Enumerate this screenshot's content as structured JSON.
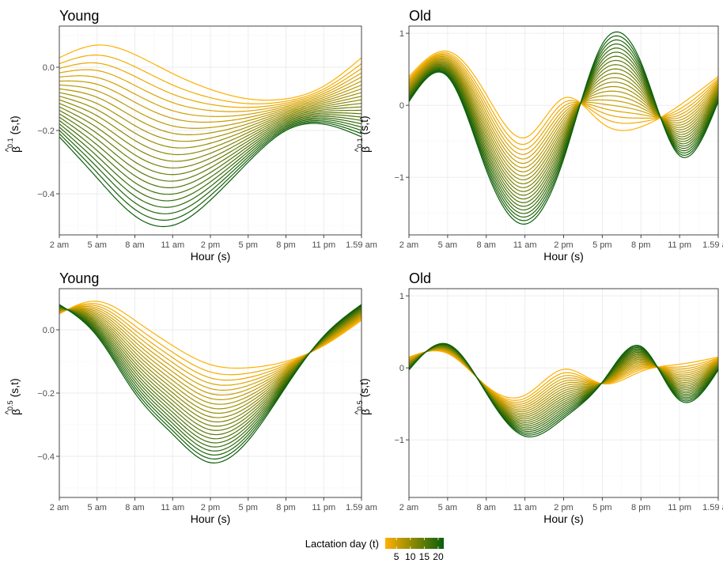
{
  "x_tick_labels": [
    "2 am",
    "5 am",
    "8 am",
    "11 am",
    "2 pm",
    "5 pm",
    "8 pm",
    "11 pm",
    "1.59 am"
  ],
  "x_axis_label": "Hour (s)",
  "legend": {
    "title": "Lactation day (t)",
    "ticks": [
      5,
      10,
      15,
      20
    ],
    "colors": {
      "low": "#ffb000",
      "high": "#0a5e0a"
    },
    "range": [
      1,
      22
    ]
  },
  "colors": {
    "grid": "#ebebeb",
    "border": "#333333",
    "tick_text": "#4d4d4d"
  },
  "chart_data": [
    {
      "type": "line",
      "title": "Young",
      "ylabel_main": "β",
      "ylabel_hat": "^",
      "ylabel_superscript": "0.1",
      "ylabel_suffix": "(s,t)",
      "xlabel": "Hour (s)",
      "xlim": [
        0,
        1
      ],
      "ylim": [
        -0.53,
        0.13
      ],
      "yticks": [
        0.0,
        -0.2,
        -0.4
      ],
      "ytick_labels": [
        "0.0",
        "−0.2",
        "−0.4"
      ],
      "xticks": [
        0,
        0.125,
        0.25,
        0.375,
        0.5,
        0.625,
        0.75,
        0.875,
        1
      ],
      "series_t": [
        1,
        22
      ],
      "n_series": 22,
      "x": [
        0,
        0.125,
        0.25,
        0.375,
        0.5,
        0.625,
        0.75,
        0.875,
        1
      ],
      "first_series": [
        0.03,
        0.07,
        0.04,
        -0.02,
        -0.07,
        -0.1,
        -0.1,
        -0.06,
        0.03
      ],
      "last_series": [
        -0.22,
        -0.35,
        -0.47,
        -0.5,
        -0.42,
        -0.3,
        -0.2,
        -0.18,
        -0.22
      ],
      "grid": true
    },
    {
      "type": "line",
      "title": "Old",
      "ylabel_main": "β",
      "ylabel_hat": "^",
      "ylabel_superscript": "0.1",
      "ylabel_suffix": "(s,t)",
      "xlabel": "Hour (s)",
      "xlim": [
        0,
        1
      ],
      "ylim": [
        -1.8,
        1.1
      ],
      "yticks": [
        1,
        0,
        -1
      ],
      "ytick_labels": [
        "1",
        "0",
        "−1"
      ],
      "xticks": [
        0,
        0.125,
        0.25,
        0.375,
        0.5,
        0.625,
        0.75,
        0.875,
        1
      ],
      "series_t": [
        1,
        22
      ],
      "n_series": 22,
      "x": [
        0,
        0.125,
        0.25,
        0.375,
        0.5,
        0.625,
        0.75,
        0.875,
        1
      ],
      "first_series": [
        0.4,
        0.75,
        0.15,
        -0.45,
        0.1,
        -0.25,
        -0.3,
        0.0,
        0.4
      ],
      "last_series": [
        0.05,
        0.4,
        -0.9,
        -1.65,
        -0.75,
        0.85,
        0.6,
        -0.7,
        0.05
      ],
      "grid": true
    },
    {
      "type": "line",
      "title": "Young",
      "ylabel_main": "β",
      "ylabel_hat": "^",
      "ylabel_superscript": "0.5",
      "ylabel_suffix": "(s,t)",
      "xlabel": "Hour (s)",
      "xlim": [
        0,
        1
      ],
      "ylim": [
        -0.53,
        0.13
      ],
      "yticks": [
        0.0,
        -0.2,
        -0.4
      ],
      "ytick_labels": [
        "0.0",
        "−0.2",
        "−0.4"
      ],
      "xticks": [
        0,
        0.125,
        0.25,
        0.375,
        0.5,
        0.625,
        0.75,
        0.875,
        1
      ],
      "series_t": [
        1,
        22
      ],
      "n_series": 22,
      "x": [
        0,
        0.125,
        0.25,
        0.375,
        0.5,
        0.625,
        0.75,
        0.875,
        1
      ],
      "first_series": [
        0.05,
        0.09,
        0.03,
        -0.05,
        -0.11,
        -0.12,
        -0.1,
        -0.05,
        0.03
      ],
      "last_series": [
        0.08,
        -0.02,
        -0.2,
        -0.33,
        -0.42,
        -0.35,
        -0.18,
        -0.02,
        0.08
      ],
      "grid": true
    },
    {
      "type": "line",
      "title": "Old",
      "ylabel_main": "β",
      "ylabel_hat": "^",
      "ylabel_superscript": "0.5",
      "ylabel_suffix": "(s,t)",
      "xlabel": "Hour (s)",
      "xlim": [
        0,
        1
      ],
      "ylim": [
        -1.8,
        1.1
      ],
      "yticks": [
        1,
        0,
        -1
      ],
      "ytick_labels": [
        "1",
        "0",
        "−1"
      ],
      "xticks": [
        0,
        0.125,
        0.25,
        0.375,
        0.5,
        0.625,
        0.75,
        0.875,
        1
      ],
      "series_t": [
        1,
        22
      ],
      "n_series": 22,
      "x": [
        0,
        0.125,
        0.25,
        0.375,
        0.5,
        0.625,
        0.75,
        0.875,
        1
      ],
      "first_series": [
        0.15,
        0.2,
        -0.25,
        -0.38,
        -0.02,
        -0.22,
        -0.05,
        0.05,
        0.15
      ],
      "last_series": [
        -0.03,
        0.33,
        -0.35,
        -0.95,
        -0.7,
        -0.2,
        0.3,
        -0.45,
        -0.03
      ],
      "grid": true
    }
  ]
}
